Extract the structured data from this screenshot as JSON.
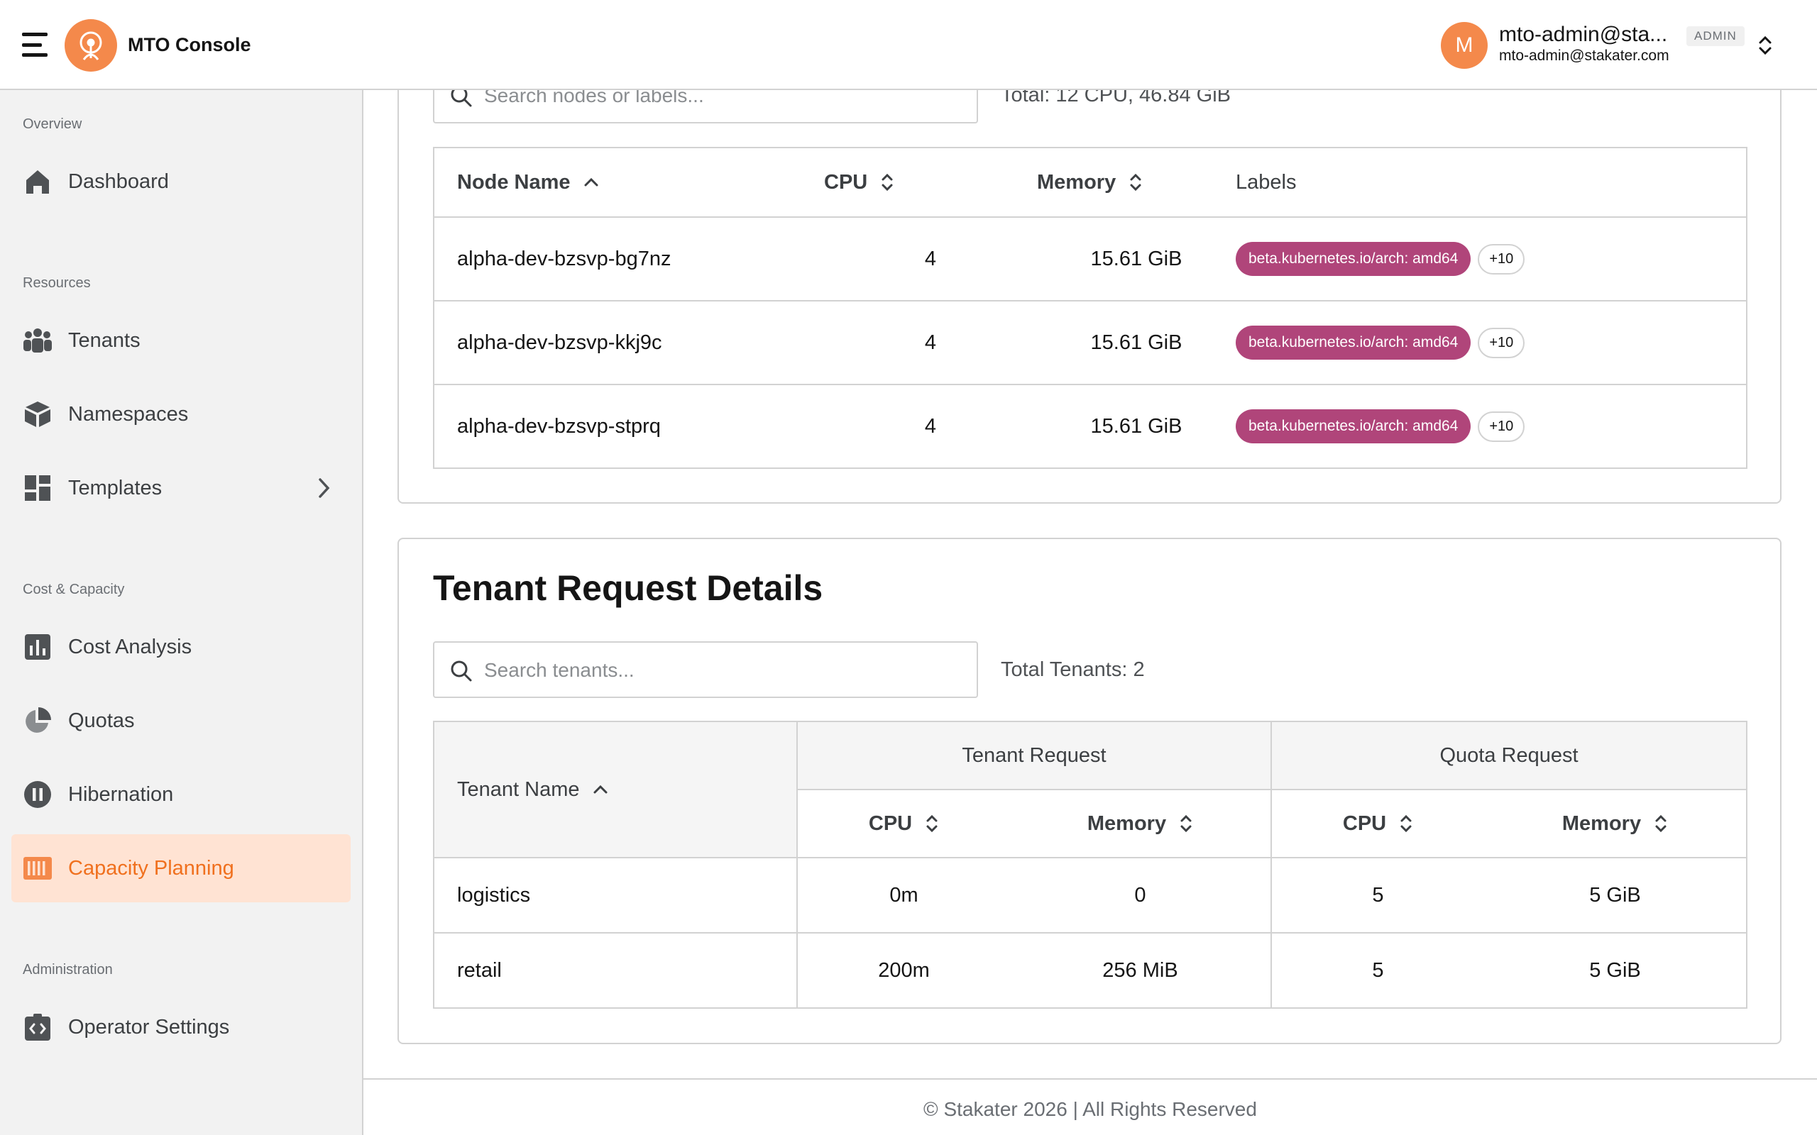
{
  "header": {
    "app_title": "MTO Console",
    "user": {
      "avatar_initial": "M",
      "name": "mto-admin@sta...",
      "badge": "ADMIN",
      "email": "mto-admin@stakater.com"
    }
  },
  "sidebar": {
    "sections": {
      "overview": "Overview",
      "resources": "Resources",
      "cost_capacity": "Cost & Capacity",
      "administration": "Administration"
    },
    "items": {
      "dashboard": {
        "label": "Dashboard",
        "icon": "home-icon"
      },
      "tenants": {
        "label": "Tenants",
        "icon": "users-icon"
      },
      "namespaces": {
        "label": "Namespaces",
        "icon": "cube-icon"
      },
      "templates": {
        "label": "Templates",
        "icon": "grid-icon"
      },
      "cost_analysis": {
        "label": "Cost Analysis",
        "icon": "bar-chart-icon"
      },
      "quotas": {
        "label": "Quotas",
        "icon": "pie-chart-icon"
      },
      "hibernation": {
        "label": "Hibernation",
        "icon": "pause-icon"
      },
      "capacity_planning": {
        "label": "Capacity Planning",
        "icon": "capacity-icon",
        "active": true
      },
      "operator_settings": {
        "label": "Operator Settings",
        "icon": "code-icon"
      }
    }
  },
  "nodes": {
    "search_placeholder": "Search nodes or labels...",
    "total": "Total: 12 CPU, 46.84 GiB",
    "columns": {
      "name": "Node Name",
      "cpu": "CPU",
      "memory": "Memory",
      "labels": "Labels"
    },
    "rows": [
      {
        "name": "alpha-dev-bzsvp-bg7nz",
        "cpu": "4",
        "memory": "15.61 GiB",
        "label": "beta.kubernetes.io/arch: amd64",
        "more": "+10"
      },
      {
        "name": "alpha-dev-bzsvp-kkj9c",
        "cpu": "4",
        "memory": "15.61 GiB",
        "label": "beta.kubernetes.io/arch: amd64",
        "more": "+10"
      },
      {
        "name": "alpha-dev-bzsvp-stprq",
        "cpu": "4",
        "memory": "15.61 GiB",
        "label": "beta.kubernetes.io/arch: amd64",
        "more": "+10"
      }
    ]
  },
  "tenant_details": {
    "title": "Tenant Request Details",
    "search_placeholder": "Search tenants...",
    "total": "Total Tenants: 2",
    "columns": {
      "name": "Tenant Name",
      "tenant_request": "Tenant Request",
      "quota_request": "Quota Request",
      "cpu": "CPU",
      "memory": "Memory"
    },
    "rows": [
      {
        "name": "logistics",
        "t_cpu": "0m",
        "t_mem": "0",
        "q_cpu": "5",
        "q_mem": "5 GiB"
      },
      {
        "name": "retail",
        "t_cpu": "200m",
        "t_mem": "256 MiB",
        "q_cpu": "5",
        "q_mem": "5 GiB"
      }
    ]
  },
  "footer": {
    "text": "© Stakater 2026 | All Rights Reserved"
  },
  "colors": {
    "accent": "#f4894b",
    "active_bg": "#ffe3d3",
    "active_text": "#f0701e",
    "label_chip": "#b0457a"
  }
}
